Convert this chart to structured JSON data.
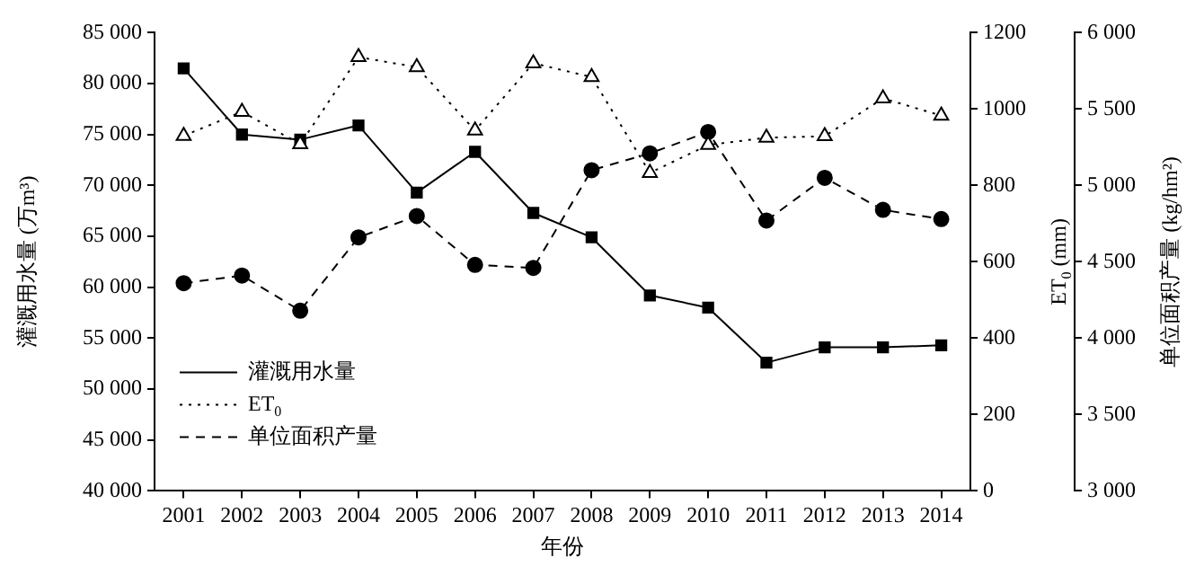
{
  "chart_data": {
    "type": "line",
    "xlabel": "年份",
    "ylabel": "灌溉用水量 (万m³)",
    "y2label": "ET$_{0}$ (mm)",
    "y3label": "单位面积产量 (kg/hm²)",
    "categories": [
      "2001",
      "2002",
      "2003",
      "2004",
      "2005",
      "2006",
      "2007",
      "2008",
      "2009",
      "2010",
      "2011",
      "2012",
      "2013",
      "2014"
    ],
    "series": [
      {
        "name": "灌溉用水量",
        "color": "#000000",
        "marker": "square",
        "line_style": "solid",
        "values": [
          81500,
          75000,
          74500,
          75900,
          69300,
          73300,
          67300,
          64900,
          59200,
          58000,
          52600,
          54100,
          54100,
          54300
        ]
      },
      {
        "name": "ET$_{0}$",
        "color": "#000000",
        "marker": "triangle",
        "line_style": "dotted",
        "axis": "y2",
        "values": [
          930,
          993,
          908,
          1136,
          1110,
          944,
          1120,
          1084,
          833,
          906,
          925,
          929,
          1028,
          983
        ]
      },
      {
        "name": "单位面积产量",
        "color": "#000000",
        "marker": "circle",
        "line_style": "dashed",
        "axis": "y3",
        "values": [
          4360,
          4410,
          4180,
          4660,
          4800,
          4480,
          4460,
          5100,
          5210,
          5350,
          4770,
          5050,
          4840,
          4780
        ]
      }
    ],
    "ylim": [
      40000,
      85000
    ],
    "yticks": [
      {
        "value": 40000,
        "label": "40 000"
      },
      {
        "value": 45000,
        "label": "45 000"
      },
      {
        "value": 50000,
        "label": "50 000"
      },
      {
        "value": 55000,
        "label": "55 000"
      },
      {
        "value": 60000,
        "label": "60 000"
      },
      {
        "value": 65000,
        "label": "65 000"
      },
      {
        "value": 70000,
        "label": "70 000"
      },
      {
        "value": 75000,
        "label": "75 000"
      },
      {
        "value": 80000,
        "label": "80 000"
      },
      {
        "value": 85000,
        "label": "85 000"
      }
    ],
    "y2lim": [
      0,
      1200
    ],
    "y2ticks": [
      0,
      200,
      400,
      600,
      800,
      1000,
      1200
    ],
    "y3lim": [
      3000,
      6000
    ],
    "y3ticks": [
      {
        "value": 3000,
        "label": "3 000"
      },
      {
        "value": 3500,
        "label": "3 500"
      },
      {
        "value": 4000,
        "label": "4 000"
      },
      {
        "value": 4500,
        "label": "4 500"
      },
      {
        "value": 5000,
        "label": "5 000"
      },
      {
        "value": 5500,
        "label": "5 500"
      },
      {
        "value": 6000,
        "label": "6 000"
      }
    ],
    "grid": false,
    "legend": "bottom left"
  }
}
